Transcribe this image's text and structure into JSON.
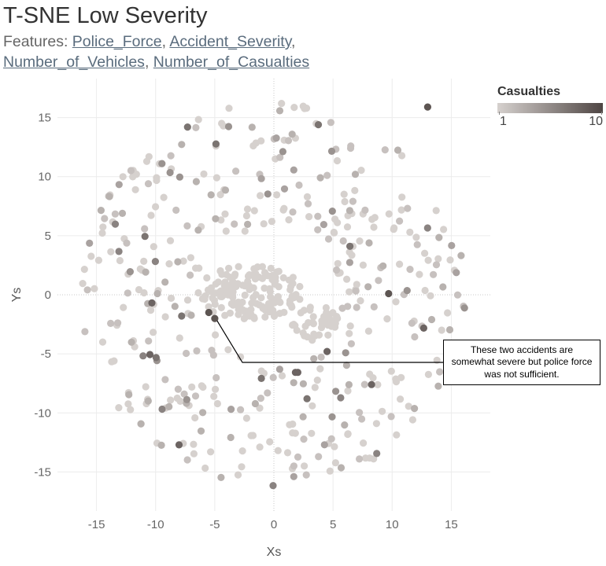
{
  "title": "T-SNE Low Severity",
  "subtitle": {
    "prefix": "Features: ",
    "features": [
      "Police_Force",
      "Accident_Severity",
      "Number_of_Vehicles",
      "Number_of_Casualties"
    ]
  },
  "legend": {
    "title": "Casualties",
    "min_label": "1",
    "max_label": "10",
    "color_min": "#d6d1ce",
    "color_max": "#4e4543"
  },
  "annotation": {
    "text": "These two accidents are somewhat severe  but police force was not sufficient.",
    "target_points": [
      [
        -5.5,
        -1.5
      ],
      [
        -5.0,
        -2.0
      ]
    ]
  },
  "chart_data": {
    "type": "scatter",
    "title": "T-SNE Low Severity",
    "xlabel": "Xs",
    "ylabel": "Ys",
    "xlim": [
      -18.3,
      18.3
    ],
    "ylim": [
      -18.3,
      18.3
    ],
    "xticks": [
      -15,
      -10,
      -5,
      0,
      5,
      10,
      15
    ],
    "yticks": [
      -15,
      -10,
      -5,
      0,
      5,
      10,
      15
    ],
    "grid": true,
    "zero_lines": true,
    "color_scale": {
      "field": "Casualties",
      "min": 1,
      "max": 10
    },
    "distribution": {
      "outer_radius": 16.3,
      "inner_clusters": [
        {
          "center": [
            -2.1,
            0.2
          ],
          "rx": 4.5,
          "ry": 2.3
        },
        {
          "center": [
            3.5,
            -2.4
          ],
          "rx": 2.0,
          "ry": 1.5
        }
      ]
    },
    "highlighted_points": [
      {
        "x": -5.5,
        "y": -1.5,
        "casualties": 9
      },
      {
        "x": -5.0,
        "y": -2.0,
        "casualties": 9
      },
      {
        "x": 4.5,
        "y": -4.8,
        "casualties": 8
      },
      {
        "x": 9.7,
        "y": 0.1,
        "casualties": 9
      },
      {
        "x": 13.0,
        "y": 15.9,
        "casualties": 9
      },
      {
        "x": -7.3,
        "y": 14.2,
        "casualties": 7
      },
      {
        "x": -7.8,
        "y": -1.8,
        "casualties": 7
      },
      {
        "x": 2.8,
        "y": -8.8,
        "casualties": 7
      }
    ]
  }
}
